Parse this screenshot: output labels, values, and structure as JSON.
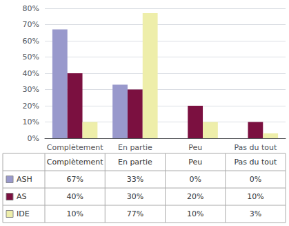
{
  "chart_data": {
    "type": "bar",
    "categories": [
      "Complètement",
      "En partie",
      "Peu",
      "Pas du tout"
    ],
    "series": [
      {
        "name": "ASH",
        "color": "#9999CC",
        "values": [
          67,
          33,
          0,
          0
        ],
        "value_labels": [
          "67%",
          "33%",
          "0%",
          "0%"
        ]
      },
      {
        "name": "AS",
        "color": "#7B1040",
        "values": [
          40,
          30,
          20,
          10
        ],
        "value_labels": [
          "40%",
          "30%",
          "20%",
          "10%"
        ]
      },
      {
        "name": "IDE",
        "color": "#EEEEAA",
        "values": [
          10,
          77,
          10,
          3
        ],
        "value_labels": [
          "10%",
          "77%",
          "10%",
          "3%"
        ]
      }
    ],
    "ylim": [
      0,
      80
    ],
    "yticks": [
      {
        "value": 0,
        "label": "0%"
      },
      {
        "value": 10,
        "label": "10%"
      },
      {
        "value": 20,
        "label": "20%"
      },
      {
        "value": 30,
        "label": "30%"
      },
      {
        "value": 40,
        "label": "40%"
      },
      {
        "value": 50,
        "label": "50%"
      },
      {
        "value": 60,
        "label": "60%"
      },
      {
        "value": 70,
        "label": "70%"
      },
      {
        "value": 80,
        "label": "80%"
      }
    ],
    "grid": true
  }
}
